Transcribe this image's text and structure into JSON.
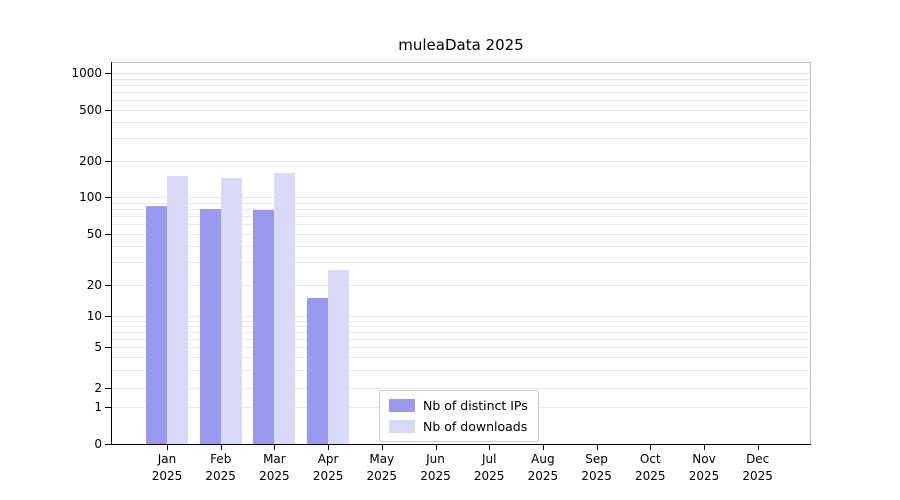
{
  "chart_data": {
    "type": "bar",
    "title": "muleaData 2025",
    "year": "2025",
    "categories": [
      "Jan",
      "Feb",
      "Mar",
      "Apr",
      "May",
      "Jun",
      "Jul",
      "Aug",
      "Sep",
      "Oct",
      "Nov",
      "Dec"
    ],
    "series": [
      {
        "name": "Nb of distinct IPs",
        "color": "#9999ee",
        "values": [
          85,
          80,
          78,
          15,
          0,
          0,
          0,
          0,
          0,
          0,
          0,
          0
        ]
      },
      {
        "name": "Nb of downloads",
        "color": "#d9d9f8",
        "values": [
          150,
          145,
          160,
          26,
          0,
          0,
          0,
          0,
          0,
          0,
          0,
          0
        ]
      }
    ],
    "yticks": [
      0,
      1,
      2,
      5,
      10,
      20,
      50,
      100,
      200,
      500,
      1000
    ],
    "yscale": "symlog",
    "ylim": [
      0,
      1100
    ],
    "grid": "horizontal-minor",
    "legend_position": "lower-center",
    "grid_color": "#e8e8e8"
  }
}
